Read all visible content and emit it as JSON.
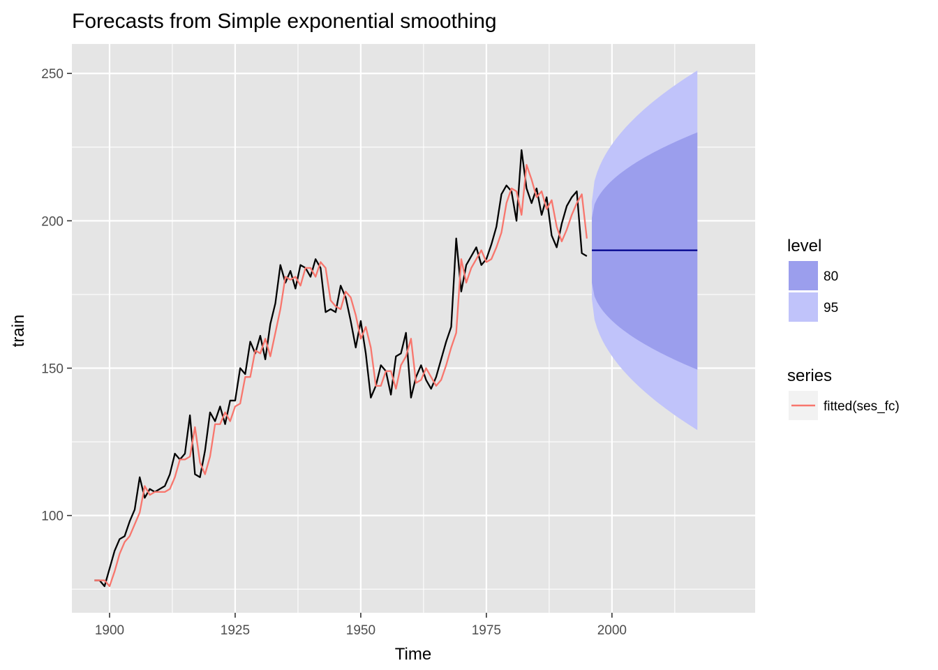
{
  "chart_data": {
    "type": "line",
    "title": "Forecasts from Simple exponential smoothing",
    "xlabel": "Time",
    "ylabel": "train",
    "xlim": [
      1892.5,
      2028.5
    ],
    "ylim": [
      67,
      260
    ],
    "x_ticks": [
      1900,
      1925,
      1950,
      1975,
      2000
    ],
    "y_ticks": [
      100,
      150,
      200,
      250
    ],
    "grid": true,
    "legend_position": "right",
    "colors": {
      "panel": "#e5e5e5",
      "grid": "#ffffff",
      "actual": "#000000",
      "fitted": "#f8766d",
      "forecast": "#00008b",
      "band80": "#9b9eed",
      "band95": "#c0c3fa"
    },
    "series": [
      {
        "name": "",
        "role": "actual",
        "x_start": 1897,
        "values": [
          78,
          78,
          76,
          82,
          88,
          92,
          93,
          98,
          102,
          113,
          106,
          109,
          108,
          109,
          110,
          114,
          121,
          119,
          121,
          134,
          114,
          113,
          122,
          135,
          132,
          137,
          131,
          139,
          139,
          150,
          148,
          159,
          155,
          161,
          153,
          165,
          172,
          185,
          179,
          183,
          177,
          185,
          184,
          181,
          187,
          184,
          169,
          170,
          169,
          178,
          174,
          166,
          157,
          166,
          155,
          140,
          144,
          151,
          149,
          141,
          154,
          155,
          162,
          140,
          147,
          151,
          146,
          143,
          147,
          153,
          159,
          164,
          194,
          176,
          185,
          188,
          191,
          185,
          187,
          192,
          198,
          209,
          212,
          210,
          200,
          224,
          211,
          206,
          211,
          202,
          208,
          195,
          191,
          199,
          205,
          208,
          210,
          189,
          188
        ]
      },
      {
        "name": "fitted(ses_fc)",
        "role": "fitted",
        "x_start": 1897,
        "values": [
          78,
          78,
          78,
          76,
          81,
          87,
          91,
          93,
          97,
          101,
          110,
          107,
          108,
          108,
          108,
          109,
          113,
          119,
          119,
          120,
          130,
          118,
          114,
          120,
          131,
          131,
          135,
          132,
          137,
          138,
          147,
          147,
          156,
          155,
          160,
          154,
          162,
          170,
          181,
          180,
          181,
          178,
          184,
          184,
          181,
          186,
          184,
          173,
          171,
          170,
          176,
          174,
          168,
          160,
          164,
          157,
          144,
          144,
          149,
          149,
          143,
          151,
          154,
          160,
          145,
          146,
          150,
          147,
          144,
          146,
          151,
          157,
          162,
          187,
          179,
          184,
          187,
          190,
          186,
          187,
          191,
          196,
          206,
          211,
          210,
          202,
          219,
          214,
          208,
          210,
          204,
          207,
          198,
          193,
          197,
          202,
          206,
          209,
          194
        ]
      },
      {
        "name": "",
        "role": "forecast",
        "x": [
          1996,
          2017
        ],
        "values": [
          190,
          190
        ]
      }
    ],
    "intervals": [
      {
        "level": "95",
        "x": [
          1996,
          2017
        ],
        "lower": [
          173.5,
          129
        ],
        "upper": [
          206.5,
          251
        ]
      },
      {
        "level": "80",
        "x": [
          1996,
          2017
        ],
        "lower": [
          179,
          149.5
        ],
        "upper": [
          201,
          230
        ]
      }
    ],
    "legend": {
      "level_title": "level",
      "level_items": [
        "80",
        "95"
      ],
      "series_title": "series",
      "series_items": [
        "fitted(ses_fc)"
      ]
    }
  }
}
